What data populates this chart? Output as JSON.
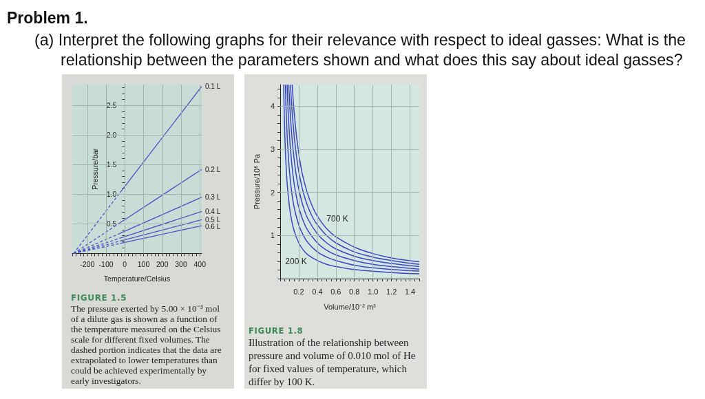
{
  "chart_data": [
    {
      "type": "line",
      "title": "FIGURE 1.5",
      "subtitle": "The pressure exerted by 5.00 × 10⁻³ mol of a dilute gas is shown as a function of the temperature measured on the Celsius scale for different fixed volumes. The dashed portion indicates that the data are extrapolated to lower temperatures than could be achieved experimentally by early investigators.",
      "annotations": [
        "Problem 1.",
        "(a) Interpret the following graphs for their relevance with respect to ideal gasses: What is the relationship between the parameters shown and what does this say about ideal gasses?"
      ],
      "xlabel": "Temperature/Celsius",
      "ylabel": "Pressure/bar",
      "xlim": [
        -280,
        410
      ],
      "xticks": [
        -200,
        -100,
        0,
        100,
        200,
        300,
        400
      ],
      "ylim": [
        0,
        2.85
      ],
      "yticks": [
        0.5,
        {
          "value": 1,
          "label": "1.0"
        },
        1.5,
        {
          "value": 2,
          "label": "2.0"
        },
        2.5
      ],
      "grid": true,
      "marker": "none",
      "line_style": "solid",
      "series": [
        {
          "name": "0.1 L",
          "color": "#4a50c8",
          "x": [
            -25,
            410
          ],
          "values": [
            1.03,
            2.82
          ]
        },
        {
          "color": "#4a50c8",
          "x": [
            -273,
            -25
          ],
          "values": [
            0,
            1.03
          ],
          "line_style": "dashed"
        },
        {
          "name": "0.2 L",
          "color": "#4a50c8",
          "x": [
            -25,
            410
          ],
          "values": [
            0.52,
            1.42
          ]
        },
        {
          "color": "#4a50c8",
          "x": [
            -273,
            -25
          ],
          "values": [
            0,
            0.52
          ],
          "line_style": "dashed"
        },
        {
          "name": "0.3 L",
          "color": "#4a50c8",
          "x": [
            -25,
            410
          ],
          "values": [
            0.34,
            0.95
          ]
        },
        {
          "color": "#4a50c8",
          "x": [
            -273,
            -25
          ],
          "values": [
            0,
            0.34
          ],
          "line_style": "dashed"
        },
        {
          "name": "0.4 L",
          "color": "#4a50c8",
          "x": [
            -25,
            410
          ],
          "values": [
            0.26,
            0.71
          ]
        },
        {
          "color": "#4a50c8",
          "x": [
            -273,
            -25
          ],
          "values": [
            0,
            0.26
          ],
          "line_style": "dashed"
        },
        {
          "name": "0.5 L",
          "color": "#4a50c8",
          "x": [
            -25,
            410
          ],
          "values": [
            0.21,
            0.57
          ]
        },
        {
          "color": "#4a50c8",
          "x": [
            -273,
            -25
          ],
          "values": [
            0,
            0.21
          ],
          "line_style": "dashed"
        },
        {
          "name": "0.6 L",
          "color": "#4a50c8",
          "x": [
            -25,
            410
          ],
          "values": [
            0.17,
            0.47
          ]
        },
        {
          "color": "#4a50c8",
          "x": [
            -273,
            -25
          ],
          "values": [
            0,
            0.17
          ],
          "line_style": "dashed"
        }
      ]
    },
    {
      "type": "line",
      "title": "FIGURE 1.8",
      "subtitle": "Illustration of the relationship between pressure and volume of 0.010 mol of He for fixed values of temperature, which differ by 100 K.",
      "annotations": [
        "700 K",
        "200 K"
      ],
      "xlabel": "Volume/10⁻² m³",
      "ylabel": "Pressure/10⁶ Pa",
      "xlim": [
        0,
        1.5
      ],
      "xticks": [
        0.2,
        0.4,
        0.6,
        0.8,
        {
          "value": 1,
          "label": "1.0"
        },
        1.2,
        1.4
      ],
      "ylim": [
        0,
        4.5
      ],
      "yticks": [
        1,
        2,
        3,
        4
      ],
      "grid": true,
      "marker": "none",
      "line_style": "solid",
      "series": [
        {
          "color": "#3b45c4",
          "x": [
            0.037,
            0.045,
            0.05,
            0.06,
            0.075,
            0.1,
            0.125,
            0.15,
            0.2,
            0.25,
            0.3,
            0.4,
            0.5,
            0.6,
            0.8,
            1.0,
            1.2,
            1.5
          ],
          "values": [
            4.5,
            3.69,
            3.32,
            2.77,
            2.21,
            1.66,
            1.33,
            1.11,
            0.83,
            0.66,
            0.55,
            0.42,
            0.33,
            0.28,
            0.21,
            0.17,
            0.14,
            0.11
          ]
        },
        {
          "color": "#3b45c4",
          "x": [
            0.055,
            0.065,
            0.075,
            0.09,
            0.1,
            0.125,
            0.15,
            0.2,
            0.25,
            0.3,
            0.4,
            0.5,
            0.6,
            0.8,
            1.0,
            1.2,
            1.5
          ],
          "values": [
            4.5,
            3.83,
            3.32,
            2.77,
            2.49,
            1.99,
            1.66,
            1.25,
            1.0,
            0.83,
            0.62,
            0.5,
            0.42,
            0.31,
            0.25,
            0.21,
            0.17
          ]
        },
        {
          "color": "#3b45c4",
          "x": [
            0.074,
            0.085,
            0.1,
            0.125,
            0.15,
            0.175,
            0.2,
            0.25,
            0.3,
            0.4,
            0.5,
            0.6,
            0.8,
            1.0,
            1.2,
            1.5
          ],
          "values": [
            4.5,
            3.91,
            3.32,
            2.66,
            2.21,
            1.9,
            1.66,
            1.33,
            1.11,
            0.83,
            0.66,
            0.55,
            0.42,
            0.33,
            0.28,
            0.22
          ]
        },
        {
          "color": "#3b45c4",
          "x": [
            0.092,
            0.1,
            0.115,
            0.125,
            0.15,
            0.175,
            0.2,
            0.25,
            0.3,
            0.4,
            0.5,
            0.6,
            0.8,
            1.0,
            1.2,
            1.5
          ],
          "values": [
            4.5,
            4.15,
            3.61,
            3.32,
            2.77,
            2.37,
            2.08,
            1.66,
            1.38,
            1.04,
            0.83,
            0.69,
            0.52,
            0.42,
            0.35,
            0.28
          ]
        },
        {
          "color": "#3b45c4",
          "x": [
            0.111,
            0.125,
            0.14,
            0.15,
            0.175,
            0.2,
            0.25,
            0.3,
            0.35,
            0.4,
            0.5,
            0.6,
            0.8,
            1.0,
            1.2,
            1.5
          ],
          "values": [
            4.5,
            3.98,
            3.56,
            3.32,
            2.85,
            2.49,
            1.99,
            1.66,
            1.42,
            1.25,
            1.0,
            0.83,
            0.62,
            0.5,
            0.42,
            0.33
          ]
        },
        {
          "color": "#3b45c4",
          "x": [
            0.129,
            0.14,
            0.15,
            0.175,
            0.2,
            0.225,
            0.25,
            0.3,
            0.35,
            0.4,
            0.5,
            0.6,
            0.8,
            1.0,
            1.2,
            1.5
          ],
          "values": [
            4.5,
            4.15,
            3.87,
            3.32,
            2.91,
            2.58,
            2.32,
            1.94,
            1.66,
            1.45,
            1.16,
            0.97,
            0.73,
            0.58,
            0.48,
            0.39
          ]
        }
      ]
    }
  ]
}
